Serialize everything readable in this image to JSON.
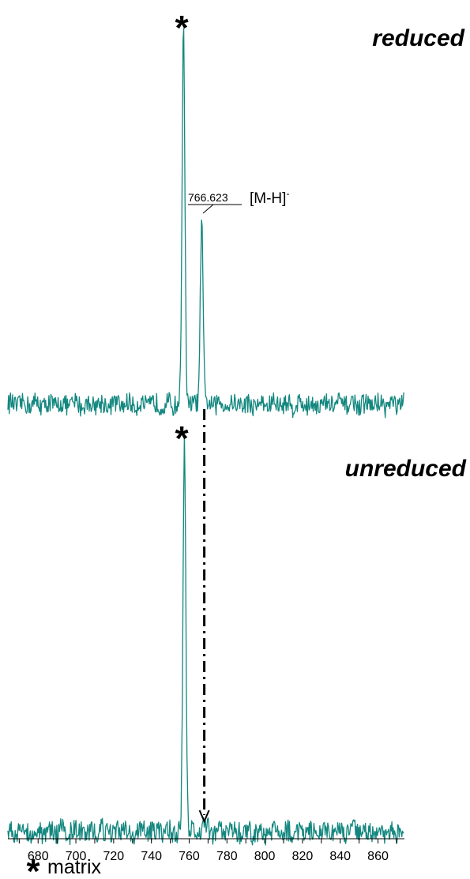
{
  "chart_data": [
    {
      "type": "line",
      "panel": "top",
      "title": "reduced",
      "xlim": [
        664,
        874
      ],
      "color": "#13877f",
      "peaks": [
        {
          "mz": 757,
          "relative_intensity": 1.0,
          "label": "*"
        },
        {
          "mz": 766.623,
          "relative_intensity": 0.49,
          "label": "766.623",
          "annotation_base": "[M-H]",
          "annotation_sup": "-"
        }
      ],
      "baseline_relative": 0.02
    },
    {
      "type": "line",
      "panel": "bottom",
      "title": "unreduced",
      "xlim": [
        664,
        874
      ],
      "color": "#13877f",
      "peaks": [
        {
          "mz": 757.5,
          "relative_intensity": 1.0,
          "label": "*"
        },
        {
          "mz": 768,
          "relative_intensity": 0.035,
          "label": ""
        }
      ],
      "baseline_relative": 0.02
    }
  ],
  "x_axis": {
    "ticks": [
      680,
      700,
      720,
      740,
      760,
      780,
      800,
      820,
      840,
      860
    ],
    "tick_labels": [
      "680",
      "700",
      "720",
      "740",
      "760",
      "780",
      "800",
      "820",
      "840",
      "860"
    ],
    "minor_step": 10
  },
  "legend": {
    "symbol": "*",
    "text": "matrix"
  },
  "arrow": {
    "mz": 768,
    "style": "dash-dot",
    "direction": "down"
  }
}
